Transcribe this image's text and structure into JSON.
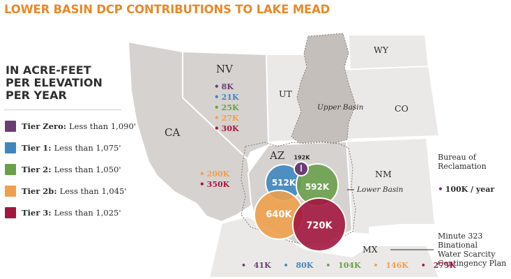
{
  "title": "LOWER BASIN DCP CONTRIBUTIONS TO LAKE MEAD",
  "colors": {
    "tier_zero": "#6a3d74",
    "tier_1": "#3f86bf",
    "tier_2": "#6aa04a",
    "tier_2b": "#f0a04b",
    "tier_3": "#a3173f",
    "title": "#e8892a",
    "lower_basin_states": "#d6d2cf",
    "upper_basin": "#c5bfbb",
    "other_states": "#ebe9e7"
  },
  "legend": {
    "heading_lines": [
      "IN ACRE-FEET",
      "PER ELEVATION",
      "PER YEAR"
    ],
    "items": [
      {
        "tier": "Tier Zero:",
        "desc": "Less than 1,090'",
        "color": "#6a3d74"
      },
      {
        "tier": "Tier 1:",
        "desc": "Less than 1,075'",
        "color": "#3f86bf"
      },
      {
        "tier": "Tier 2:",
        "desc": "Less than 1,050'",
        "color": "#6aa04a"
      },
      {
        "tier": "Tier 2b:",
        "desc": "Less than 1,045'",
        "color": "#f0a04b"
      },
      {
        "tier": "Tier 3:",
        "desc": "Less than 1,025'",
        "color": "#a3173f"
      }
    ]
  },
  "states": {
    "nv": "NV",
    "ut": "UT",
    "wy": "WY",
    "co": "CO",
    "ca": "CA",
    "az": "AZ",
    "nm": "NM",
    "mx": "MX"
  },
  "basin_labels": {
    "upper": "Upper Basin",
    "lower": "Lower Basin"
  },
  "nevada_contributions": [
    {
      "value": "8K",
      "color": "#6a3d74"
    },
    {
      "value": "21K",
      "color": "#3f86bf"
    },
    {
      "value": "25K",
      "color": "#6aa04a"
    },
    {
      "value": "27K",
      "color": "#f0a04b"
    },
    {
      "value": "30K",
      "color": "#a3173f"
    }
  ],
  "california_contributions": [
    {
      "value": "200K",
      "color": "#f0a04b"
    },
    {
      "value": "350K",
      "color": "#a3173f"
    }
  ],
  "arizona_bubbles": [
    {
      "value": "192K",
      "color": "#6a3d74"
    },
    {
      "value": "512K",
      "color": "#3f86bf"
    },
    {
      "value": "592K",
      "color": "#6aa04a"
    },
    {
      "value": "640K",
      "color": "#f0a04b"
    },
    {
      "value": "720K",
      "color": "#a3173f"
    }
  ],
  "reclamation": {
    "label_lines": [
      "Bureau of",
      "Reclamation"
    ],
    "value": "100K / year",
    "color": "#6a3d74"
  },
  "minute323": {
    "label_lines": [
      "Minute 323",
      "Binational",
      "Water Scarcity",
      "Contingency Plan"
    ]
  },
  "mexico_contributions": [
    {
      "value": "41K",
      "color": "#6a3d74"
    },
    {
      "value": "80K",
      "color": "#3f86bf"
    },
    {
      "value": "104K",
      "color": "#6aa04a"
    },
    {
      "value": "146K",
      "color": "#f0a04b"
    },
    {
      "value": "275K",
      "color": "#a3173f"
    }
  ]
}
